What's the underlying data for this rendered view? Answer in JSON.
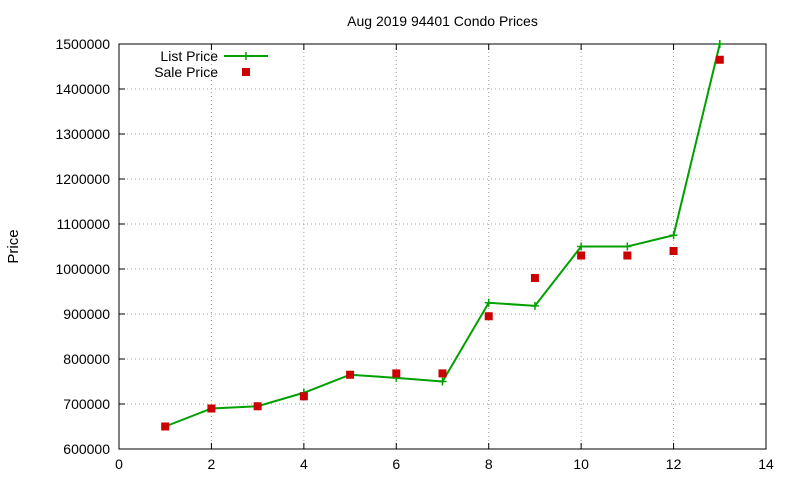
{
  "chart_data": {
    "type": "line",
    "title": "Aug 2019 94401 Condo Prices",
    "xlabel": "",
    "ylabel": "Price",
    "xlim": [
      0,
      14
    ],
    "ylim": [
      600000,
      1500000
    ],
    "x_ticks": [
      0,
      2,
      4,
      6,
      8,
      10,
      12,
      14
    ],
    "y_ticks": [
      600000,
      700000,
      800000,
      900000,
      1000000,
      1100000,
      1200000,
      1300000,
      1400000,
      1500000
    ],
    "grid": true,
    "legend_position": "top-left",
    "series": [
      {
        "name": "List Price",
        "style": "line+cross",
        "color": "#00a000",
        "points": [
          [
            1,
            650000
          ],
          [
            2,
            690000
          ],
          [
            3,
            695000
          ],
          [
            4,
            725000
          ],
          [
            5,
            765000
          ],
          [
            6,
            758000
          ],
          [
            7,
            750000
          ],
          [
            8,
            925000
          ],
          [
            9,
            918000
          ],
          [
            10,
            1050000
          ],
          [
            11,
            1050000
          ],
          [
            12,
            1075000
          ],
          [
            13,
            1500000
          ]
        ]
      },
      {
        "name": "Sale Price",
        "style": "square",
        "color": "#cc0000",
        "points": [
          [
            1,
            650000
          ],
          [
            2,
            690000
          ],
          [
            3,
            695000
          ],
          [
            4,
            717000
          ],
          [
            5,
            765000
          ],
          [
            6,
            768000
          ],
          [
            7,
            768000
          ],
          [
            8,
            895000
          ],
          [
            9,
            980000
          ],
          [
            10,
            1030000
          ],
          [
            11,
            1030000
          ],
          [
            12,
            1040000
          ],
          [
            13,
            1465000
          ]
        ]
      }
    ]
  }
}
